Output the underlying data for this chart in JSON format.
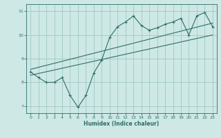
{
  "xlabel": "Humidex (Indice chaleur)",
  "ylabel": "",
  "bg_color": "#cde8e5",
  "grid_color": "#a0c8c4",
  "line_color": "#2e6e68",
  "xlim": [
    -0.5,
    23.5
  ],
  "ylim": [
    6.7,
    11.3
  ],
  "xticks": [
    0,
    1,
    2,
    3,
    4,
    5,
    6,
    7,
    8,
    9,
    10,
    11,
    12,
    13,
    14,
    15,
    16,
    17,
    18,
    19,
    20,
    21,
    22,
    23
  ],
  "yticks": [
    7,
    8,
    9,
    10,
    11
  ],
  "jagged_x": [
    0,
    1,
    2,
    3,
    4,
    5,
    6,
    7,
    8,
    9,
    10,
    11,
    12,
    13,
    14,
    15,
    16,
    17,
    18,
    19,
    20,
    21,
    22,
    23
  ],
  "jagged_y": [
    8.45,
    8.2,
    8.0,
    8.0,
    8.2,
    7.45,
    6.95,
    7.45,
    8.4,
    8.95,
    9.9,
    10.35,
    10.55,
    10.8,
    10.4,
    10.2,
    10.3,
    10.45,
    10.55,
    10.7,
    10.0,
    10.8,
    10.95,
    10.35
  ],
  "trend1_x": [
    0,
    23
  ],
  "trend1_y": [
    8.3,
    10.0
  ],
  "trend2_x": [
    0,
    23
  ],
  "trend2_y": [
    8.55,
    10.5
  ]
}
